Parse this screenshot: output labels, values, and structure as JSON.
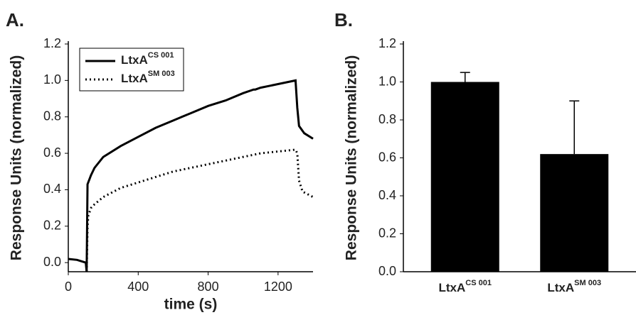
{
  "chart_data": [
    {
      "type": "line",
      "panel_label": "A.",
      "x_label": "time (s)",
      "y_label": "Response Units (normalized)",
      "xlim": [
        0,
        1400
      ],
      "xticks": [
        0,
        400,
        800,
        1200
      ],
      "ylim": [
        -0.05,
        1.2
      ],
      "yticks": [
        {
          "value": 0,
          "label": "0.0"
        },
        0.2,
        0.4,
        0.6,
        0.8,
        {
          "value": 1,
          "label": "1.0"
        },
        1.2
      ],
      "legend": "upper left",
      "series": [
        {
          "name": "LtxA",
          "superscript": "CS 001",
          "color": "#000000",
          "dash": "solid",
          "x": [
            0,
            50,
            100,
            105,
            110,
            130,
            150,
            200,
            300,
            400,
            500,
            600,
            700,
            800,
            900,
            1000,
            1060,
            1070,
            1100,
            1200,
            1300,
            1310,
            1320,
            1350,
            1400
          ],
          "values": [
            0.02,
            0.015,
            0.0,
            -0.05,
            0.43,
            0.48,
            0.52,
            0.58,
            0.64,
            0.69,
            0.74,
            0.78,
            0.82,
            0.86,
            0.89,
            0.93,
            0.95,
            0.95,
            0.96,
            0.98,
            1.0,
            0.85,
            0.75,
            0.71,
            0.68
          ]
        },
        {
          "name": "LtxA",
          "superscript": "SM 003",
          "color": "#000000",
          "dash": "dotted",
          "x": [
            105,
            110,
            115,
            130,
            150,
            200,
            300,
            400,
            500,
            600,
            700,
            800,
            900,
            1000,
            1100,
            1200,
            1300,
            1310,
            1320,
            1340,
            1400
          ],
          "values": [
            -0.05,
            0.2,
            0.26,
            0.3,
            0.32,
            0.36,
            0.41,
            0.44,
            0.47,
            0.5,
            0.52,
            0.54,
            0.56,
            0.58,
            0.6,
            0.61,
            0.62,
            0.6,
            0.45,
            0.39,
            0.36
          ]
        }
      ]
    },
    {
      "type": "bar",
      "panel_label": "B.",
      "y_label": "Response Units (normalized)",
      "categories": [
        "LtxA",
        "LtxA"
      ],
      "superscripts": [
        "CS 001",
        "SM 003"
      ],
      "values": [
        1.0,
        0.62
      ],
      "errors": [
        0.05,
        0.28
      ],
      "color": "#000000",
      "ylim": [
        0,
        1.2
      ],
      "yticks": [
        {
          "value": 0,
          "label": "0.0"
        },
        0.2,
        0.4,
        0.6,
        0.8,
        {
          "value": 1,
          "label": "1.0"
        },
        1.2
      ]
    }
  ]
}
